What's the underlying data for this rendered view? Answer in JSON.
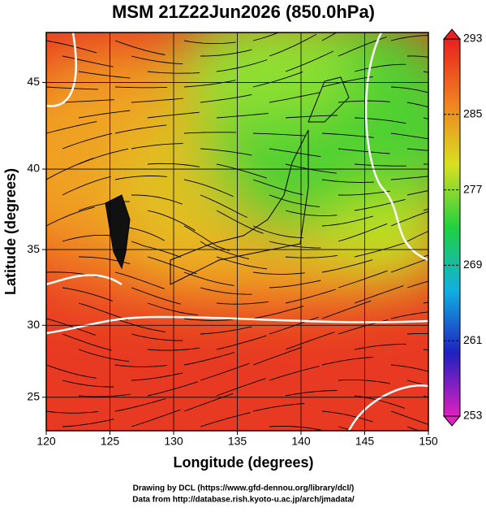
{
  "chart_data": {
    "type": "map",
    "title": "MSM 21Z22Jun2026 (850.0hPa)",
    "x_label": "Longitude (degrees)",
    "y_label": "Latitude  (degrees)",
    "projection": "mercator",
    "xlim": [
      120,
      150
    ],
    "ylim": [
      22.6,
      47.7
    ],
    "xticks": [
      120,
      125,
      130,
      135,
      140,
      145,
      150
    ],
    "yticks": [
      25,
      30,
      35,
      40,
      45
    ],
    "grid": true,
    "colorbar": {
      "lim": [
        253,
        293
      ],
      "ticks": [
        253,
        261,
        269,
        277,
        285,
        293
      ],
      "colors": [
        "#e020c0",
        "#2020c0",
        "#10b0e0",
        "#20d040",
        "#d8e020",
        "#f08020",
        "#e82020"
      ]
    },
    "footer": [
      "Drawing by DCL (https://www.gfd-dennou.org/library/dcl/)",
      "Data from http://database.rish.kyoto-u.ac.jp/arch/jmadata/"
    ]
  }
}
